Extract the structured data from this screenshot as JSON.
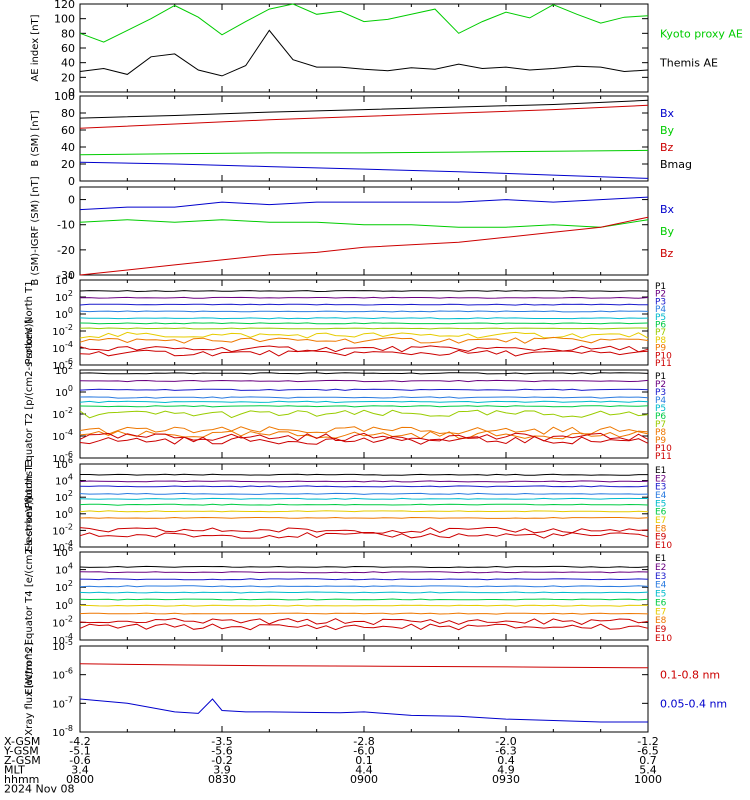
{
  "chart_data": [
    {
      "type": "line",
      "ylabel": "AE index [nT]",
      "ylim": [
        0,
        120
      ],
      "yticks": [
        0,
        20,
        40,
        60,
        80,
        100,
        120
      ],
      "series": [
        {
          "name": "Kyoto proxy AE",
          "color": "#00cc00",
          "x": [
            0,
            5,
            10,
            15,
            20,
            25,
            30,
            35,
            40,
            45,
            50,
            55,
            60,
            65,
            70,
            75,
            80,
            85,
            90,
            95,
            100,
            105,
            110,
            115,
            120
          ],
          "y": [
            80,
            68,
            84,
            100,
            118,
            102,
            78,
            96,
            113,
            120,
            106,
            110,
            96,
            99,
            106,
            113,
            80,
            96,
            109,
            101,
            119,
            106,
            94,
            102,
            104
          ]
        },
        {
          "name": "Themis AE",
          "color": "#000000",
          "x": [
            0,
            5,
            10,
            15,
            20,
            25,
            30,
            35,
            40,
            45,
            50,
            55,
            60,
            65,
            70,
            75,
            80,
            85,
            90,
            95,
            100,
            105,
            110,
            115,
            120
          ],
          "y": [
            28,
            32,
            24,
            48,
            52,
            30,
            22,
            36,
            84,
            44,
            34,
            34,
            31,
            29,
            33,
            31,
            38,
            32,
            34,
            30,
            32,
            35,
            34,
            28,
            30
          ]
        }
      ]
    },
    {
      "type": "line",
      "ylabel": "B (SM) [nT]",
      "ylim": [
        0,
        100
      ],
      "yticks": [
        0,
        20,
        40,
        60,
        80,
        100
      ],
      "series": [
        {
          "name": "Bx",
          "color": "#0000cc",
          "x": [
            0,
            20,
            40,
            60,
            80,
            100,
            120
          ],
          "y": [
            22,
            20,
            17,
            14,
            11,
            7,
            3
          ]
        },
        {
          "name": "By",
          "color": "#00cc00",
          "x": [
            0,
            20,
            40,
            60,
            80,
            100,
            120
          ],
          "y": [
            31,
            32,
            33,
            33,
            34,
            35,
            36
          ]
        },
        {
          "name": "Bz",
          "color": "#cc0000",
          "x": [
            0,
            20,
            40,
            60,
            80,
            100,
            120
          ],
          "y": [
            62,
            67,
            72,
            76,
            80,
            84,
            89
          ]
        },
        {
          "name": "Bmag",
          "color": "#000000",
          "x": [
            0,
            20,
            40,
            60,
            80,
            100,
            120
          ],
          "y": [
            74,
            77,
            81,
            84,
            87,
            90,
            95
          ]
        }
      ]
    },
    {
      "type": "line",
      "ylabel": "B (SM)-IGRF (SM) [nT]",
      "ylim": [
        -30,
        5
      ],
      "yticks": [
        -30,
        -20,
        -10,
        0
      ],
      "series": [
        {
          "name": "Bx",
          "color": "#0000cc",
          "x": [
            0,
            10,
            20,
            30,
            40,
            50,
            60,
            70,
            80,
            90,
            100,
            110,
            120
          ],
          "y": [
            -4,
            -3,
            -3,
            -1,
            -2,
            -1,
            -1,
            -1,
            -1,
            0,
            -1,
            0,
            1
          ]
        },
        {
          "name": "By",
          "color": "#00cc00",
          "x": [
            0,
            10,
            20,
            30,
            40,
            50,
            60,
            70,
            80,
            90,
            100,
            110,
            120
          ],
          "y": [
            -9,
            -8,
            -9,
            -8,
            -9,
            -9,
            -10,
            -10,
            -11,
            -11,
            -10,
            -11,
            -8
          ]
        },
        {
          "name": "Bz",
          "color": "#cc0000",
          "x": [
            0,
            10,
            20,
            30,
            40,
            50,
            60,
            70,
            80,
            90,
            100,
            110,
            120
          ],
          "y": [
            -30,
            -28,
            -26,
            -24,
            -22,
            -21,
            -19,
            -18,
            -17,
            -15,
            -13,
            -11,
            -7
          ]
        }
      ]
    },
    {
      "type": "line",
      "ylabel": "Protons North T1",
      "yscale": "log",
      "ylim_exp": [
        -6,
        4
      ],
      "ytick_exps": [
        -6,
        -4,
        -2,
        0,
        2,
        4
      ],
      "series": [
        {
          "name": "P1",
          "color": "#000000",
          "level_exp": 2.7
        },
        {
          "name": "P2",
          "color": "#6a0080",
          "level_exp": 1.9
        },
        {
          "name": "P3",
          "color": "#1a1acc",
          "level_exp": 1.1
        },
        {
          "name": "P4",
          "color": "#2a7be0",
          "level_exp": 0.3
        },
        {
          "name": "P5",
          "color": "#00bbcc",
          "level_exp": -0.5
        },
        {
          "name": "P6",
          "color": "#00cc44",
          "level_exp": -1.1
        },
        {
          "name": "P7",
          "color": "#99cc00",
          "level_exp": -1.7
        },
        {
          "name": "P8",
          "color": "#e6cc00",
          "level_exp": -2.5
        },
        {
          "name": "P9",
          "color": "#ee7700",
          "level_exp": -3.1
        },
        {
          "name": "P10",
          "color": "#cc0000",
          "level_exp": -4.1
        },
        {
          "name": "P11",
          "color": "#cc0000",
          "level_exp": -4.6
        }
      ]
    },
    {
      "type": "line",
      "ylabel": "Protons Equator T2 [p/(cm2-s-sr-keV)]",
      "yscale": "log",
      "ylim_exp": [
        -6,
        2
      ],
      "ytick_exps": [
        -6,
        -4,
        -2,
        0,
        2
      ],
      "series": [
        {
          "name": "P1",
          "color": "#000000",
          "level_exp": 1.7
        },
        {
          "name": "P2",
          "color": "#6a0080",
          "level_exp": 1.0
        },
        {
          "name": "P3",
          "color": "#1a1acc",
          "level_exp": 0.2
        },
        {
          "name": "P4",
          "color": "#2a7be0",
          "level_exp": -0.5
        },
        {
          "name": "P5",
          "color": "#00bbcc",
          "level_exp": -0.9
        },
        {
          "name": "P6",
          "color": "#00cc44",
          "level_exp": -1.3
        },
        {
          "name": "P7",
          "color": "#99cc00",
          "level_exp": -2.0
        },
        {
          "name": "P8",
          "color": "#ee7700",
          "level_exp": -3.5
        },
        {
          "name": "P9",
          "color": "#ee7700",
          "level_exp": -3.9
        },
        {
          "name": "P10",
          "color": "#cc0000",
          "level_exp": -4.1
        },
        {
          "name": "P11",
          "color": "#cc0000",
          "level_exp": -4.4
        }
      ]
    },
    {
      "type": "line",
      "ylabel": "Electrons North T3",
      "yscale": "log",
      "ylim_exp": [
        -4,
        6
      ],
      "ytick_exps": [
        -4,
        -2,
        0,
        2,
        4,
        6
      ],
      "series": [
        {
          "name": "E1",
          "color": "#000000",
          "level_exp": 4.7
        },
        {
          "name": "E2",
          "color": "#6a0080",
          "level_exp": 3.9
        },
        {
          "name": "E3",
          "color": "#1a1acc",
          "level_exp": 3.3
        },
        {
          "name": "E4",
          "color": "#2a7be0",
          "level_exp": 2.4
        },
        {
          "name": "E5",
          "color": "#00bbcc",
          "level_exp": 1.8
        },
        {
          "name": "E6",
          "color": "#00cc44",
          "level_exp": 1.1
        },
        {
          "name": "E7",
          "color": "#e6cc00",
          "level_exp": 0.3
        },
        {
          "name": "E8",
          "color": "#ee7700",
          "level_exp": -0.5
        },
        {
          "name": "E9",
          "color": "#cc0000",
          "level_exp": -2.0
        },
        {
          "name": "E10",
          "color": "#cc0000",
          "level_exp": -2.6
        }
      ]
    },
    {
      "type": "line",
      "ylabel": "Electrons Equator T4 [e/(cm2-s-sr-keV)]",
      "yscale": "log",
      "ylim_exp": [
        -4,
        6
      ],
      "ytick_exps": [
        -4,
        -2,
        0,
        2,
        4,
        6
      ],
      "series": [
        {
          "name": "E1",
          "color": "#000000",
          "level_exp": 4.3
        },
        {
          "name": "E2",
          "color": "#6a0080",
          "level_exp": 3.7
        },
        {
          "name": "E3",
          "color": "#1a1acc",
          "level_exp": 2.9
        },
        {
          "name": "E4",
          "color": "#2a7be0",
          "level_exp": 2.1
        },
        {
          "name": "E5",
          "color": "#00bbcc",
          "level_exp": 1.4
        },
        {
          "name": "E6",
          "color": "#00cc44",
          "level_exp": 0.6
        },
        {
          "name": "E7",
          "color": "#e6cc00",
          "level_exp": -0.1
        },
        {
          "name": "E8",
          "color": "#ee7700",
          "level_exp": -1.0
        },
        {
          "name": "E9",
          "color": "#cc0000",
          "level_exp": -1.9
        },
        {
          "name": "E10",
          "color": "#cc0000",
          "level_exp": -2.5
        }
      ]
    },
    {
      "type": "line",
      "ylabel": "Xray flux [W/m^2]",
      "yscale": "log",
      "ylim_exp": [
        -8,
        -5
      ],
      "ytick_exps": [
        -8,
        -7,
        -6,
        -5
      ],
      "series": [
        {
          "name": "0.1-0.8 nm",
          "color": "#cc0000",
          "x": [
            0,
            20,
            40,
            60,
            80,
            100,
            120
          ],
          "y_exp": [
            -5.62,
            -5.66,
            -5.69,
            -5.7,
            -5.72,
            -5.74,
            -5.76
          ]
        },
        {
          "name": "0.05-0.4 nm",
          "color": "#0000cc",
          "x": [
            0,
            10,
            20,
            25,
            28,
            30,
            35,
            40,
            50,
            55,
            60,
            70,
            80,
            90,
            100,
            110,
            120
          ],
          "y_exp": [
            -6.85,
            -7.0,
            -7.3,
            -7.35,
            -6.85,
            -7.25,
            -7.3,
            -7.3,
            -7.32,
            -7.33,
            -7.3,
            -7.42,
            -7.45,
            -7.55,
            -7.6,
            -7.65,
            -7.65
          ]
        }
      ]
    }
  ],
  "timeline": {
    "x_minutes": [
      0,
      30,
      60,
      90,
      120
    ],
    "rows": [
      {
        "label": "X-GSM",
        "values": [
          "-4.2",
          "-3.5",
          "-2.8",
          "-2.0",
          "-1.2"
        ]
      },
      {
        "label": "Y-GSM",
        "values": [
          "-5.1",
          "-5.6",
          "-6.0",
          "-6.3",
          "-6.5"
        ]
      },
      {
        "label": "Z-GSM",
        "values": [
          "-0.6",
          "-0.2",
          "0.1",
          "0.4",
          "0.7"
        ]
      },
      {
        "label": "MLT",
        "values": [
          "3.4",
          "3.9",
          "4.4",
          "4.9",
          "5.4"
        ]
      },
      {
        "label": "hhmm",
        "values": [
          "0800",
          "0830",
          "0900",
          "0930",
          "1000"
        ]
      }
    ],
    "date": "2024 Nov 08"
  }
}
